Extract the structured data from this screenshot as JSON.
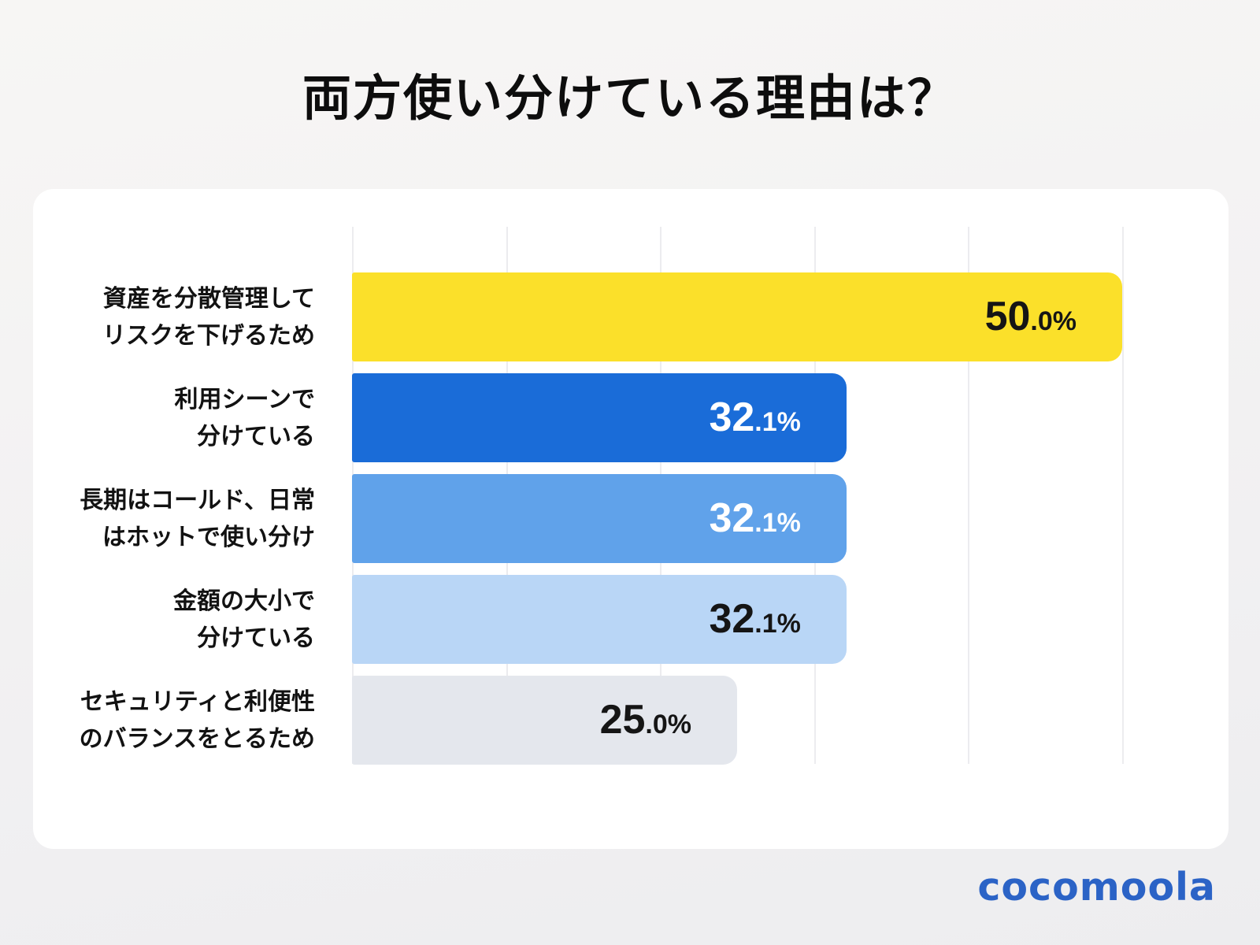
{
  "header": {
    "title": "両方使い分けている理由は？"
  },
  "footer": {
    "logo_text": "cocomoola",
    "logo_color": "#2b63c6"
  },
  "colors": {
    "background_top": "#f7f6f4",
    "background_bottom": "#ededef",
    "card": "#ffffff",
    "gridline": "#ececef",
    "title_text": "#0d0d0d",
    "category_text": "#121212"
  },
  "chart_data": {
    "type": "bar",
    "orientation": "horizontal",
    "title": "両方使い分けている理由は？",
    "xlabel": "",
    "ylabel": "",
    "xlim": [
      0,
      50
    ],
    "gridline_interval": 10,
    "grid": "vertical lines only, no tick labels",
    "legend": "none",
    "categories": [
      "資産を分散管理してリスクを下げるため",
      "利用シーンで分けている",
      "長期はコールド、日常はホットで使い分け",
      "金額の大小で分けている",
      "セキュリティと利便性のバランスをとるため"
    ],
    "values": [
      50.0,
      32.1,
      32.1,
      32.1,
      25.0
    ],
    "rows": [
      {
        "label": "資産を分散管理して\nリスクを下げるため",
        "value": 50.0,
        "value_main": "50",
        "value_sub": ".0%",
        "color": "#fbe02a",
        "text_color": "#151515"
      },
      {
        "label": "利用シーンで\n分けている",
        "value": 32.1,
        "value_main": "32",
        "value_sub": ".1%",
        "color": "#1a6cd8",
        "text_color": "#ffffff"
      },
      {
        "label": "長期はコールド、日常\nはホットで使い分け",
        "value": 32.1,
        "value_main": "32",
        "value_sub": ".1%",
        "color": "#60a2ea",
        "text_color": "#ffffff"
      },
      {
        "label": "金額の大小で\n分けている",
        "value": 32.1,
        "value_main": "32",
        "value_sub": ".1%",
        "color": "#b9d6f6",
        "text_color": "#151515"
      },
      {
        "label": "セキュリティと利便性\nのバランスをとるため",
        "value": 25.0,
        "value_main": "25",
        "value_sub": ".0%",
        "color": "#e4e7ed",
        "text_color": "#151515"
      }
    ]
  }
}
